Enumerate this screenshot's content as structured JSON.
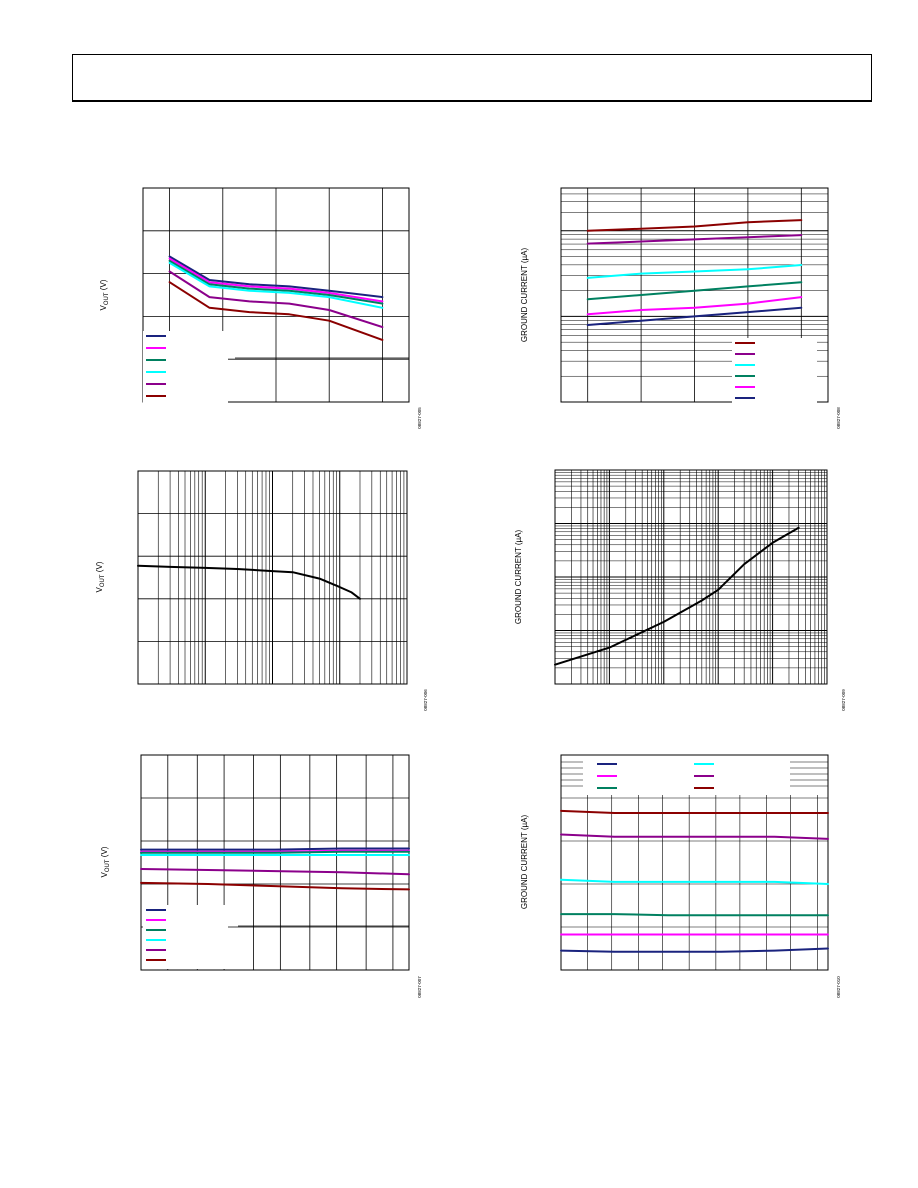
{
  "header": {},
  "colors": {
    "navy": "#1a237e",
    "magenta": "#ff00ff",
    "green": "#008060",
    "cyan": "#00ffff",
    "purple": "#8b008b",
    "darkred": "#8b0000",
    "black": "#000000"
  },
  "chart_data": [
    {
      "type": "line",
      "ylabel_main": "V",
      "ylabel_sub": "OUT",
      "ylabel_unit": " (V)",
      "figure_id": "08827-005",
      "xlim": [
        0,
        100
      ],
      "ylim": [
        0,
        100
      ],
      "grid_x": [
        10,
        30,
        50,
        70,
        90
      ],
      "grid_y": [
        20,
        40,
        60,
        80
      ],
      "legend_entries": 6,
      "x": [
        10,
        25,
        40,
        55,
        70,
        90
      ],
      "series": [
        {
          "color": "navy",
          "values": [
            68,
            57,
            55,
            54,
            52,
            49
          ]
        },
        {
          "color": "magenta",
          "values": [
            67,
            56,
            54,
            53,
            51,
            47
          ]
        },
        {
          "color": "green",
          "values": [
            66,
            55,
            53,
            52,
            50,
            46
          ]
        },
        {
          "color": "cyan",
          "values": [
            65,
            54,
            52,
            51,
            49,
            44
          ]
        },
        {
          "color": "purple",
          "values": [
            61,
            49,
            47,
            46,
            43,
            35
          ]
        },
        {
          "color": "darkred",
          "values": [
            56,
            44,
            42,
            41,
            38,
            29
          ]
        }
      ]
    },
    {
      "type": "line",
      "ylabel_main": "GROUND CURRENT (µA)",
      "figure_id": "08827-008",
      "xlim": [
        0,
        100
      ],
      "ylim": [
        0,
        100
      ],
      "grid_x": [
        10,
        30,
        50,
        70,
        90
      ],
      "legend_entries": 6,
      "x": [
        10,
        30,
        50,
        70,
        90
      ],
      "series": [
        {
          "color": "darkred",
          "values": [
            80,
            81,
            82,
            84,
            85
          ]
        },
        {
          "color": "purple",
          "values": [
            74,
            75,
            76,
            77,
            78
          ]
        },
        {
          "color": "cyan",
          "values": [
            58,
            60,
            61,
            62,
            64
          ]
        },
        {
          "color": "green",
          "values": [
            48,
            50,
            52,
            54,
            56
          ]
        },
        {
          "color": "magenta",
          "values": [
            41,
            43,
            44,
            46,
            49
          ]
        },
        {
          "color": "navy",
          "values": [
            36,
            38,
            40,
            42,
            44
          ]
        }
      ]
    },
    {
      "type": "line",
      "ylabel_main": "V",
      "ylabel_sub": "OUT",
      "ylabel_unit": " (V)",
      "figure_id": "08827-006",
      "xscale": "log",
      "xlim": [
        0.01,
        100
      ],
      "ylim": [
        0,
        100
      ],
      "grid_y": [
        20,
        40,
        60,
        80
      ],
      "series": [
        {
          "color": "black",
          "x": [
            0.01,
            0.03,
            0.1,
            0.3,
            1,
            2,
            5,
            10,
            15,
            20
          ],
          "values": [
            55.5,
            55,
            54.5,
            54,
            53,
            52.5,
            49.5,
            45.5,
            43,
            40
          ]
        }
      ]
    },
    {
      "type": "line",
      "ylabel_main": "GROUND CURRENT (µA)",
      "figure_id": "08827-009",
      "xscale": "log",
      "xlim": [
        0.001,
        100
      ],
      "ylim": [
        0,
        100
      ],
      "series": [
        {
          "color": "black",
          "x": [
            0.001,
            0.01,
            0.1,
            0.5,
            1,
            3,
            10,
            30
          ],
          "values": [
            9,
            17,
            29,
            39,
            44,
            56,
            66,
            73
          ]
        }
      ]
    },
    {
      "type": "line",
      "ylabel_main": "V",
      "ylabel_sub": "OUT",
      "ylabel_unit": " (V)",
      "figure_id": "08827-007",
      "xlim": [
        0,
        100
      ],
      "ylim": [
        0,
        100
      ],
      "grid_x": [
        10,
        21,
        31,
        42,
        52,
        63,
        73,
        84,
        94
      ],
      "grid_y": [
        20,
        40,
        60,
        80
      ],
      "legend_entries": 6,
      "x": [
        0,
        25,
        50,
        75,
        100
      ],
      "series": [
        {
          "color": "navy",
          "values": [
            56,
            56,
            56,
            56.5,
            56.5
          ]
        },
        {
          "color": "magenta",
          "values": [
            55,
            55,
            55,
            55.5,
            55.5
          ]
        },
        {
          "color": "green",
          "values": [
            54.5,
            54.5,
            54.5,
            55,
            55
          ]
        },
        {
          "color": "cyan",
          "values": [
            53.5,
            53.5,
            53.5,
            53.5,
            53.5
          ]
        },
        {
          "color": "purple",
          "values": [
            47,
            46.5,
            46,
            45.5,
            44.5
          ]
        },
        {
          "color": "darkred",
          "values": [
            40.5,
            40,
            39,
            38,
            37.5
          ]
        }
      ]
    },
    {
      "type": "line",
      "ylabel_main": "GROUND CURRENT (µA)",
      "figure_id": "08827-010",
      "xlim": [
        0,
        100
      ],
      "ylim": [
        0,
        100
      ],
      "legend_entries": 6,
      "x": [
        0,
        20,
        40,
        60,
        80,
        100
      ],
      "series": [
        {
          "color": "darkred",
          "values": [
            74,
            73,
            73,
            73,
            73,
            73
          ]
        },
        {
          "color": "purple",
          "values": [
            63,
            62,
            62,
            62,
            62,
            61
          ]
        },
        {
          "color": "cyan",
          "values": [
            42,
            41,
            41,
            41,
            41,
            40
          ]
        },
        {
          "color": "green",
          "values": [
            26,
            26,
            25.5,
            25.5,
            25.5,
            25.5
          ]
        },
        {
          "color": "magenta",
          "values": [
            16.5,
            16.5,
            16.5,
            16.5,
            16.5,
            16.5
          ]
        },
        {
          "color": "navy",
          "values": [
            9,
            8.5,
            8.5,
            8.5,
            9,
            10
          ]
        }
      ]
    }
  ]
}
